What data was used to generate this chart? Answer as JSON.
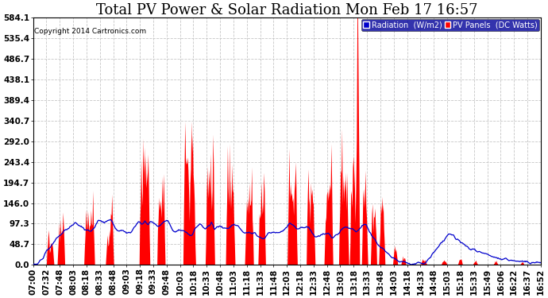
{
  "title": "Total PV Power & Solar Radiation Mon Feb 17 16:57",
  "copyright": "Copyright 2014 Cartronics.com",
  "legend_radiation": "Radiation  (W/m2)",
  "legend_pv": "PV Panels  (DC Watts)",
  "ylabel_values": [
    0.0,
    48.7,
    97.3,
    146.0,
    194.7,
    243.4,
    292.0,
    340.7,
    389.4,
    438.1,
    486.7,
    535.4,
    584.1
  ],
  "background_color": "#ffffff",
  "plot_bg_color": "#ffffff",
  "grid_color": "#c0c0c0",
  "pv_color": "#ff0000",
  "radiation_color": "#0000cc",
  "title_fontsize": 13,
  "tick_fontsize": 7.5,
  "num_points": 800,
  "hour_start": 7.0,
  "hour_end": 16.867,
  "x_tick_labels": [
    "07:00",
    "07:32",
    "07:48",
    "08:03",
    "08:18",
    "08:33",
    "08:48",
    "09:03",
    "09:18",
    "09:33",
    "09:48",
    "10:03",
    "10:18",
    "10:33",
    "10:48",
    "11:03",
    "11:18",
    "11:33",
    "11:48",
    "12:03",
    "12:18",
    "12:33",
    "12:48",
    "13:03",
    "13:18",
    "13:33",
    "13:48",
    "14:03",
    "14:18",
    "14:33",
    "14:48",
    "15:03",
    "15:18",
    "15:33",
    "15:49",
    "16:06",
    "16:22",
    "16:37",
    "16:52"
  ]
}
